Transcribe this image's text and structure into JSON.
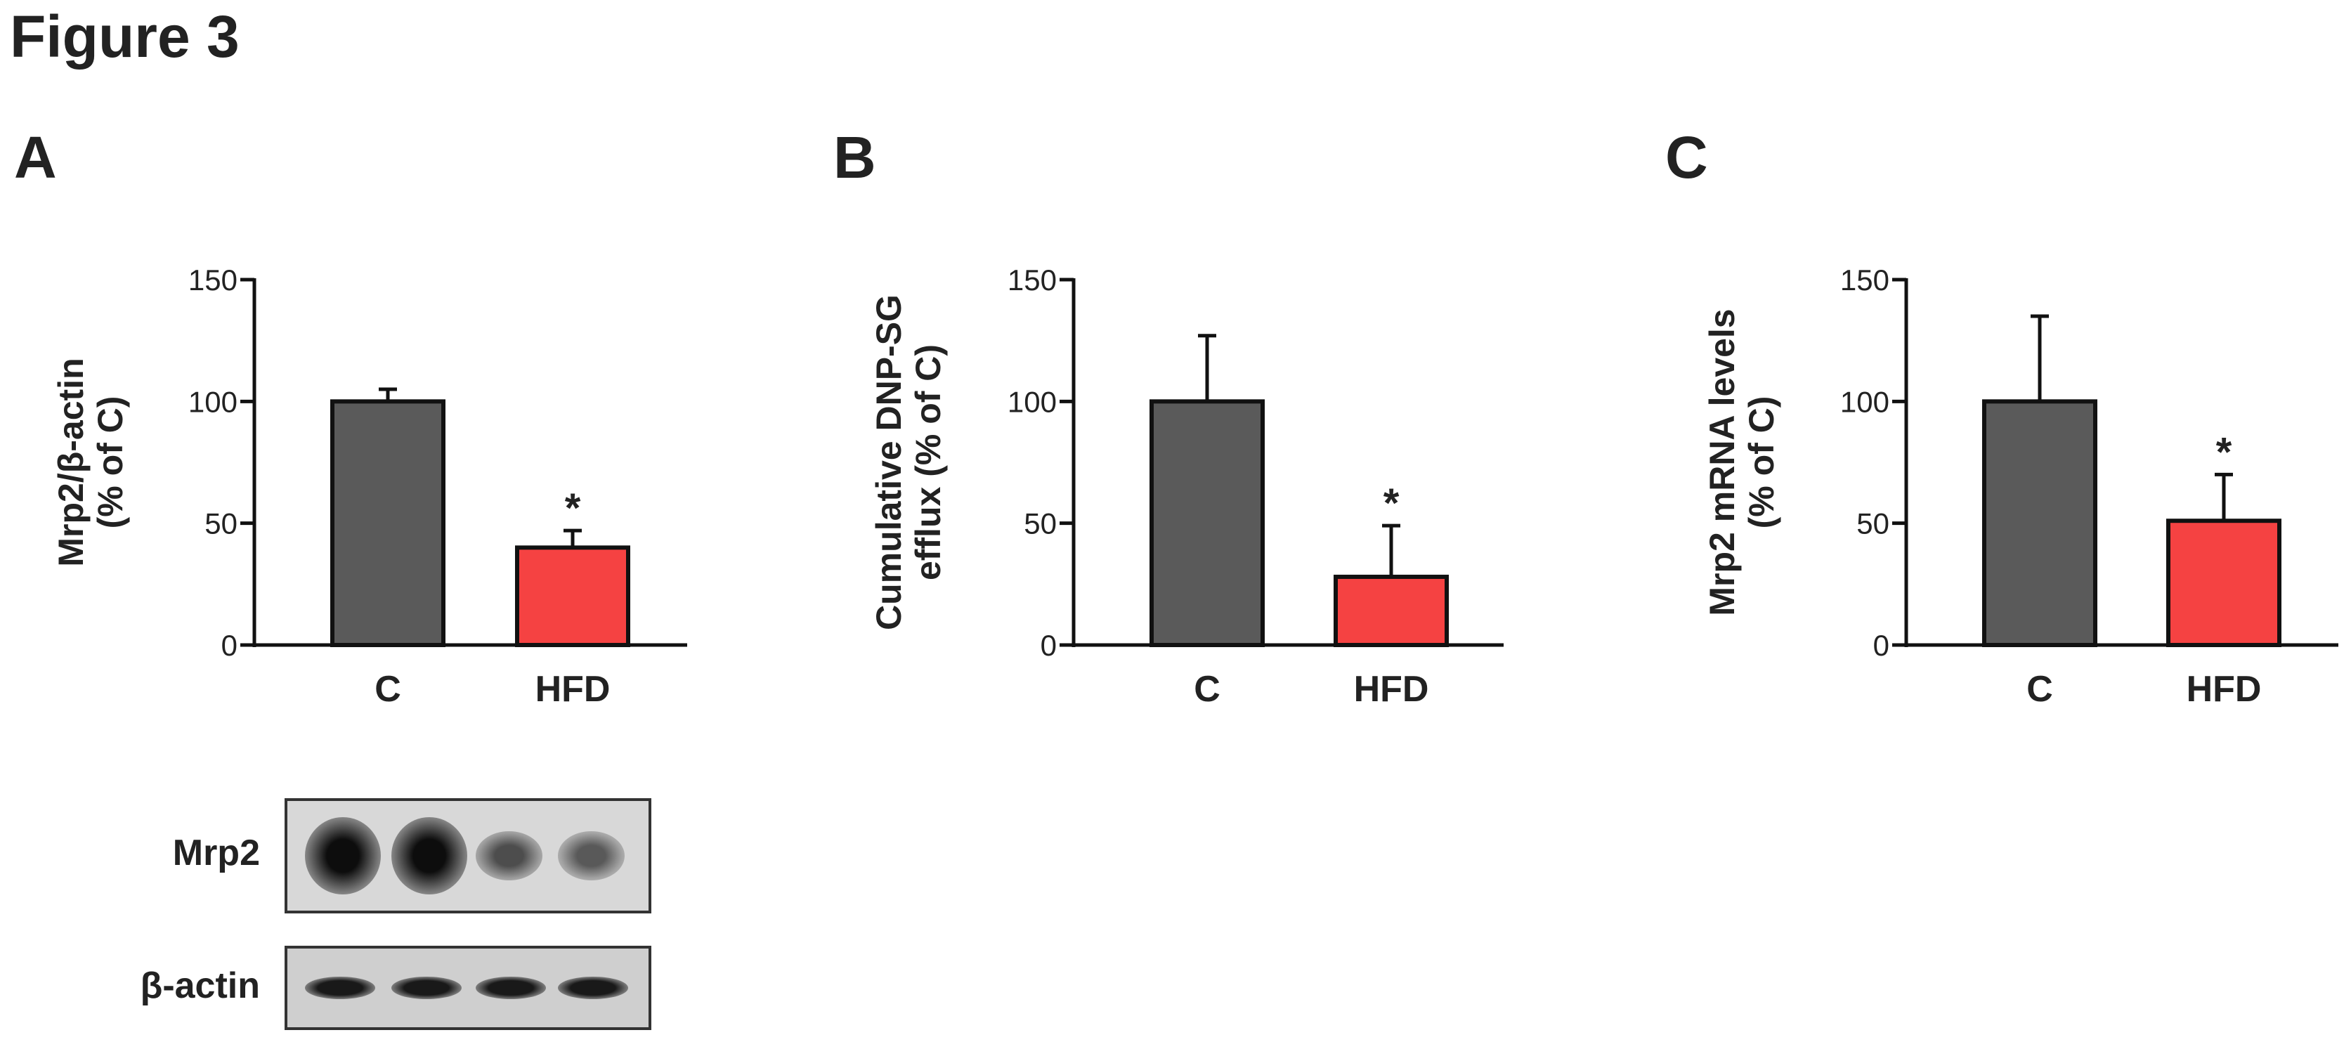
{
  "figure_title": "Figure 3",
  "panels": [
    {
      "letter": "A"
    },
    {
      "letter": "B"
    },
    {
      "letter": "C"
    }
  ],
  "colors": {
    "control_bar": "#5a5a5a",
    "hfd_bar": "#f54242",
    "axis": "#111111",
    "text": "#222222"
  },
  "chart_data": [
    {
      "type": "bar",
      "panel": "A",
      "categories": [
        "C",
        "HFD"
      ],
      "values": [
        100,
        40
      ],
      "errors": [
        5,
        7
      ],
      "significance": [
        "",
        "*"
      ],
      "ylabel": [
        "Mrp2/β-actin",
        "(% of C)"
      ],
      "ylim": [
        0,
        150
      ],
      "yticks": [
        0,
        50,
        100,
        150
      ]
    },
    {
      "type": "bar",
      "panel": "B",
      "categories": [
        "C",
        "HFD"
      ],
      "values": [
        100,
        28
      ],
      "errors": [
        27,
        21
      ],
      "significance": [
        "",
        "*"
      ],
      "ylabel": [
        "Cumulative DNP-SG",
        "efflux (% of C)"
      ],
      "ylim": [
        0,
        150
      ],
      "yticks": [
        0,
        50,
        100,
        150
      ]
    },
    {
      "type": "bar",
      "panel": "C",
      "categories": [
        "C",
        "HFD"
      ],
      "values": [
        100,
        51
      ],
      "errors": [
        35,
        19
      ],
      "significance": [
        "",
        "*"
      ],
      "ylabel": [
        "Mrp2 mRNA levels",
        "(% of C)"
      ],
      "ylim": [
        0,
        150
      ],
      "yticks": [
        0,
        50,
        100,
        150
      ]
    }
  ],
  "western_blot": {
    "rows": [
      {
        "label": "Mrp2",
        "band_intensities": [
          0.95,
          0.95,
          0.7,
          0.65
        ]
      },
      {
        "label": "β-actin",
        "band_intensities": [
          0.9,
          0.9,
          0.9,
          0.9
        ]
      }
    ]
  }
}
